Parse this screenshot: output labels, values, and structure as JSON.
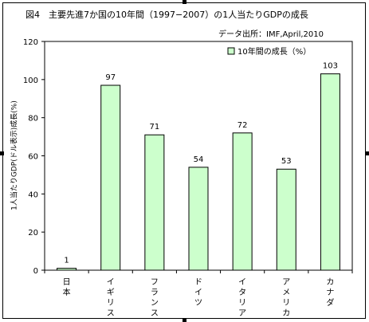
{
  "chart_data": {
    "type": "bar",
    "title": "図4　主要先進7か国の10年間（1997−2007）の1人当たりGDPの成長",
    "source": "データ出所：IMF,April,2010",
    "ylabel": "1人当たりGDP(ドル表示)成長(%)",
    "xlabel": "",
    "categories": [
      "日本",
      "イギリス",
      "フランス",
      "ドイツ",
      "イタリア",
      "アメリカ",
      "カナダ"
    ],
    "series": [
      {
        "name": "10年間の成長（%）",
        "values": [
          1,
          97,
          71,
          54,
          72,
          53,
          103
        ]
      }
    ],
    "ylim": [
      0,
      120
    ],
    "yticks": [
      0,
      20,
      40,
      60,
      80,
      100,
      120
    ],
    "grid": false,
    "legend_position": "top-right",
    "data_labels": true,
    "colors": {
      "bar_fill": "#ccffcc",
      "bar_stroke": "#000000"
    }
  }
}
